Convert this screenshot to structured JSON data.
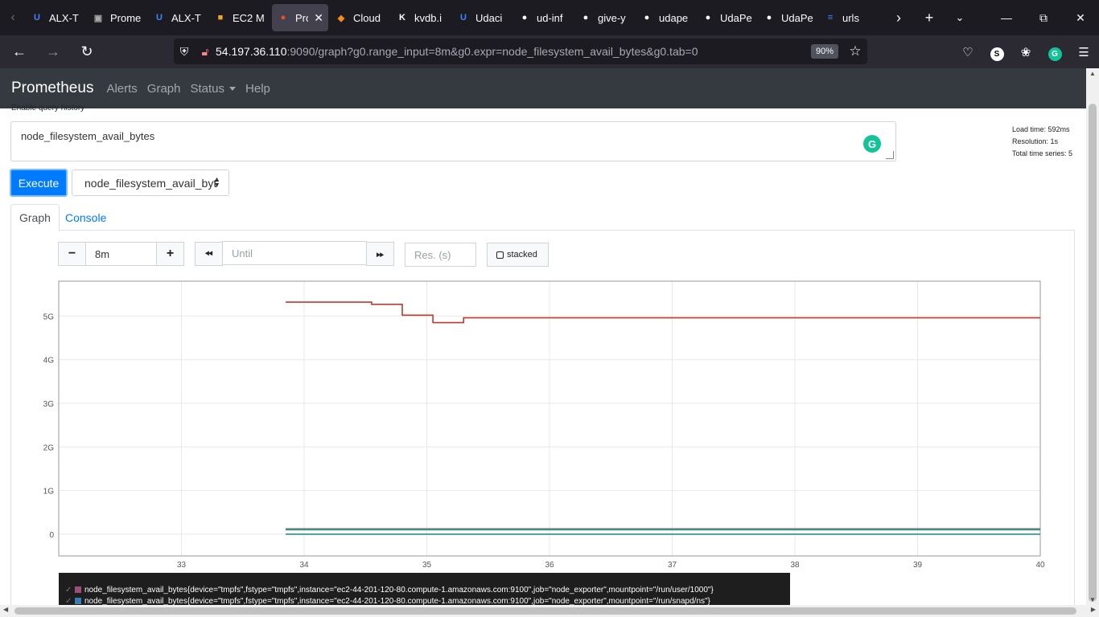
{
  "browser": {
    "tabs": [
      {
        "title": "ALX-T",
        "icon": "udacity-icon",
        "color": "#3a87ff",
        "glyph": "U"
      },
      {
        "title": "Prome",
        "icon": "page-icon",
        "color": "#aaaaaa",
        "glyph": "▣"
      },
      {
        "title": "ALX-T",
        "icon": "udacity-icon",
        "color": "#3a87ff",
        "glyph": "U"
      },
      {
        "title": "EC2 M",
        "icon": "aws-icon",
        "color": "#f7a51c",
        "glyph": "■"
      },
      {
        "title": "Pro",
        "icon": "prometheus-icon",
        "color": "#e6522c",
        "glyph": "●",
        "active": true
      },
      {
        "title": "Cloud",
        "icon": "cloud-icon",
        "color": "#f68b1f",
        "glyph": "◆"
      },
      {
        "title": "kvdb.i",
        "icon": "kvdb-icon",
        "color": "#ffffff",
        "glyph": "K"
      },
      {
        "title": "Udaci",
        "icon": "udacity-icon",
        "color": "#3a87ff",
        "glyph": "U"
      },
      {
        "title": "ud-inf",
        "icon": "github-icon",
        "color": "#ffffff",
        "glyph": "●"
      },
      {
        "title": "give-y",
        "icon": "github-icon",
        "color": "#ffffff",
        "glyph": "●"
      },
      {
        "title": "udape",
        "icon": "github-icon",
        "color": "#ffffff",
        "glyph": "●"
      },
      {
        "title": "UdaPe",
        "icon": "github-icon",
        "color": "#ffffff",
        "glyph": "●"
      },
      {
        "title": "UdaPe",
        "icon": "github-icon",
        "color": "#ffffff",
        "glyph": "●"
      },
      {
        "title": "urls",
        "icon": "docs-icon",
        "color": "#4285f4",
        "glyph": "≡"
      }
    ],
    "url_host": "54.197.36.110",
    "url_rest": ":9090/graph?g0.range_input=8m&g0.expr=node_filesystem_avail_bytes&g0.tab=0",
    "zoom": "90%"
  },
  "prom": {
    "brand": "Prometheus",
    "nav": [
      "Alerts",
      "Graph",
      "Status",
      "Help"
    ],
    "history_label": "Enable query history",
    "expression": "node_filesystem_avail_bytes",
    "stats": [
      "Load time: 592ms",
      "Resolution: 1s",
      "Total time series: 5"
    ],
    "execute": "Execute",
    "metric_select": "node_filesystem_avail_byt",
    "tab_graph": "Graph",
    "tab_console": "Console",
    "range": "8m",
    "until_placeholder": "Until",
    "res_placeholder": "Res. (s)",
    "stacked": "stacked",
    "legend": [
      {
        "text": "node_filesystem_avail_bytes{device=\"tmpfs\",fstype=\"tmpfs\",instance=\"ec2-44-201-120-80.compute-1.amazonaws.com:9100\",job=\"node_exporter\",mountpoint=\"/run/user/1000\"}",
        "color": "#9c4f7a"
      },
      {
        "text": "node_filesystem_avail_bytes{device=\"tmpfs\",fstype=\"tmpfs\",instance=\"ec2-44-201-120-80.compute-1.amazonaws.com:9100\",job=\"node_exporter\",mountpoint=\"/run/snapd/ns\"}",
        "color": "#3b7db5"
      }
    ]
  },
  "chart_data": {
    "type": "line",
    "xlim": [
      32,
      40
    ],
    "ylim": [
      -0.5,
      5.8
    ],
    "x_ticks": [
      33,
      34,
      35,
      36,
      37,
      38,
      39,
      40
    ],
    "x_tick_labels": [
      "33",
      "34",
      "35",
      "36",
      "37",
      "38",
      "39",
      "40"
    ],
    "y_ticks": [
      0,
      1,
      2,
      3,
      4,
      5
    ],
    "y_tick_labels": [
      "0",
      "1G",
      "2G",
      "3G",
      "4G",
      "5G"
    ],
    "grid": true,
    "series": [
      {
        "color": "#c0392b",
        "x": [
          33.85,
          34.55,
          34.55,
          34.8,
          34.8,
          35.05,
          35.05,
          35.3,
          35.3,
          40
        ],
        "y": [
          5.32,
          5.32,
          5.27,
          5.27,
          5.02,
          5.02,
          4.85,
          4.85,
          4.96,
          4.96
        ]
      },
      {
        "color": "#9c4f7a",
        "x": [
          33.85,
          40
        ],
        "y": [
          0.12,
          0.12
        ]
      },
      {
        "color": "#3b7db5",
        "x": [
          33.85,
          40
        ],
        "y": [
          0.11,
          0.11
        ]
      },
      {
        "color": "#3a9c6e",
        "x": [
          33.85,
          40
        ],
        "y": [
          0.1,
          0.1
        ]
      },
      {
        "color": "#2a8e8e",
        "x": [
          33.85,
          40
        ],
        "y": [
          0.0,
          0.0
        ]
      }
    ]
  }
}
